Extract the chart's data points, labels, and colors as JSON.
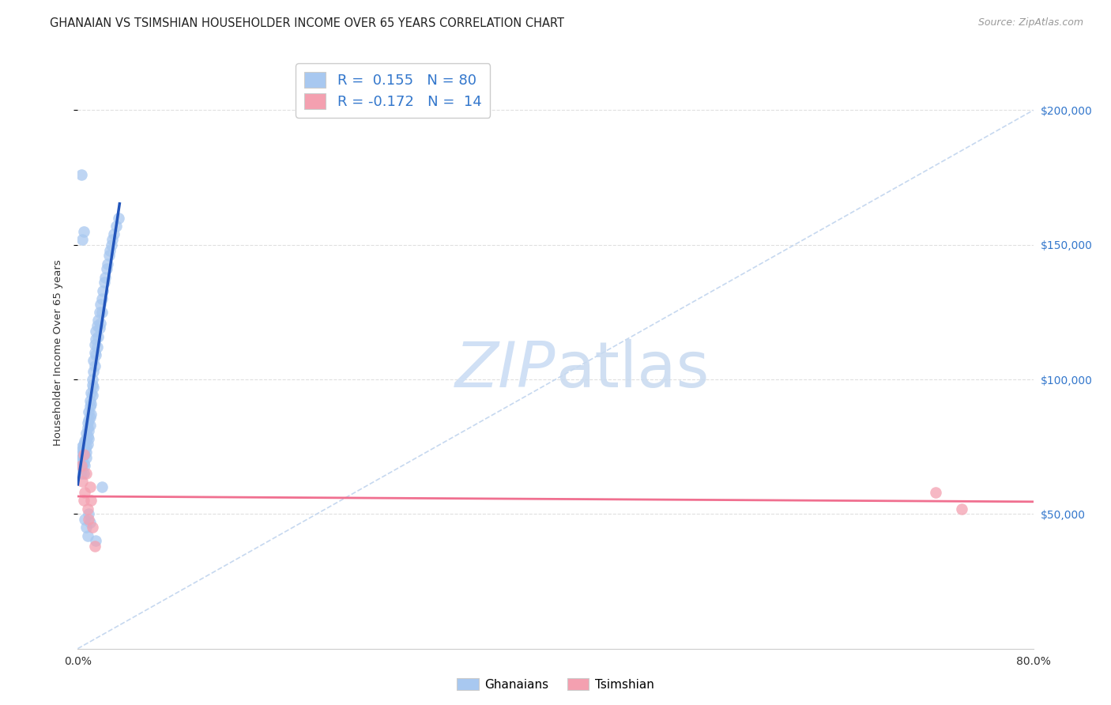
{
  "title": "GHANAIAN VS TSIMSHIAN HOUSEHOLDER INCOME OVER 65 YEARS CORRELATION CHART",
  "source": "Source: ZipAtlas.com",
  "ylabel": "Householder Income Over 65 years",
  "xlim": [
    0.0,
    0.8
  ],
  "ylim": [
    0,
    220000
  ],
  "ghanaian_R": 0.155,
  "ghanaian_N": 80,
  "tsimshian_R": -0.172,
  "tsimshian_N": 14,
  "ghanaian_color": "#a8c8f0",
  "tsimshian_color": "#f4a0b0",
  "ghanaian_line_color": "#2255bb",
  "tsimshian_line_color": "#f07090",
  "diagonal_line_color": "#c0d4ee",
  "watermark_color": "#d0e0f5",
  "background_color": "#ffffff",
  "ghanaian_x": [
    0.002,
    0.003,
    0.003,
    0.003,
    0.004,
    0.004,
    0.004,
    0.004,
    0.005,
    0.005,
    0.005,
    0.005,
    0.006,
    0.006,
    0.006,
    0.006,
    0.007,
    0.007,
    0.007,
    0.007,
    0.007,
    0.008,
    0.008,
    0.008,
    0.008,
    0.009,
    0.009,
    0.009,
    0.009,
    0.01,
    0.01,
    0.01,
    0.01,
    0.011,
    0.011,
    0.011,
    0.012,
    0.012,
    0.012,
    0.013,
    0.013,
    0.013,
    0.014,
    0.014,
    0.014,
    0.015,
    0.015,
    0.015,
    0.016,
    0.016,
    0.017,
    0.017,
    0.018,
    0.018,
    0.019,
    0.019,
    0.02,
    0.02,
    0.021,
    0.022,
    0.023,
    0.024,
    0.025,
    0.026,
    0.027,
    0.028,
    0.029,
    0.03,
    0.032,
    0.034,
    0.003,
    0.004,
    0.005,
    0.006,
    0.007,
    0.008,
    0.009,
    0.01,
    0.015,
    0.02
  ],
  "ghanaian_y": [
    70000,
    68000,
    72000,
    65000,
    75000,
    71000,
    68000,
    74000,
    73000,
    69000,
    76000,
    65000,
    77000,
    72000,
    68000,
    74000,
    78000,
    75000,
    71000,
    80000,
    73000,
    82000,
    79000,
    76000,
    84000,
    85000,
    81000,
    88000,
    78000,
    90000,
    86000,
    92000,
    83000,
    95000,
    91000,
    87000,
    98000,
    94000,
    100000,
    103000,
    97000,
    107000,
    110000,
    105000,
    113000,
    115000,
    109000,
    118000,
    120000,
    112000,
    122000,
    116000,
    125000,
    119000,
    128000,
    121000,
    130000,
    125000,
    133000,
    136000,
    138000,
    141000,
    143000,
    146000,
    148000,
    150000,
    152000,
    154000,
    157000,
    160000,
    176000,
    152000,
    155000,
    48000,
    45000,
    42000,
    50000,
    47000,
    40000,
    60000
  ],
  "tsimshian_x": [
    0.003,
    0.004,
    0.005,
    0.005,
    0.006,
    0.007,
    0.008,
    0.009,
    0.01,
    0.011,
    0.012,
    0.014,
    0.718,
    0.74
  ],
  "tsimshian_y": [
    68000,
    62000,
    55000,
    72000,
    58000,
    65000,
    52000,
    48000,
    60000,
    55000,
    45000,
    38000,
    58000,
    52000
  ]
}
